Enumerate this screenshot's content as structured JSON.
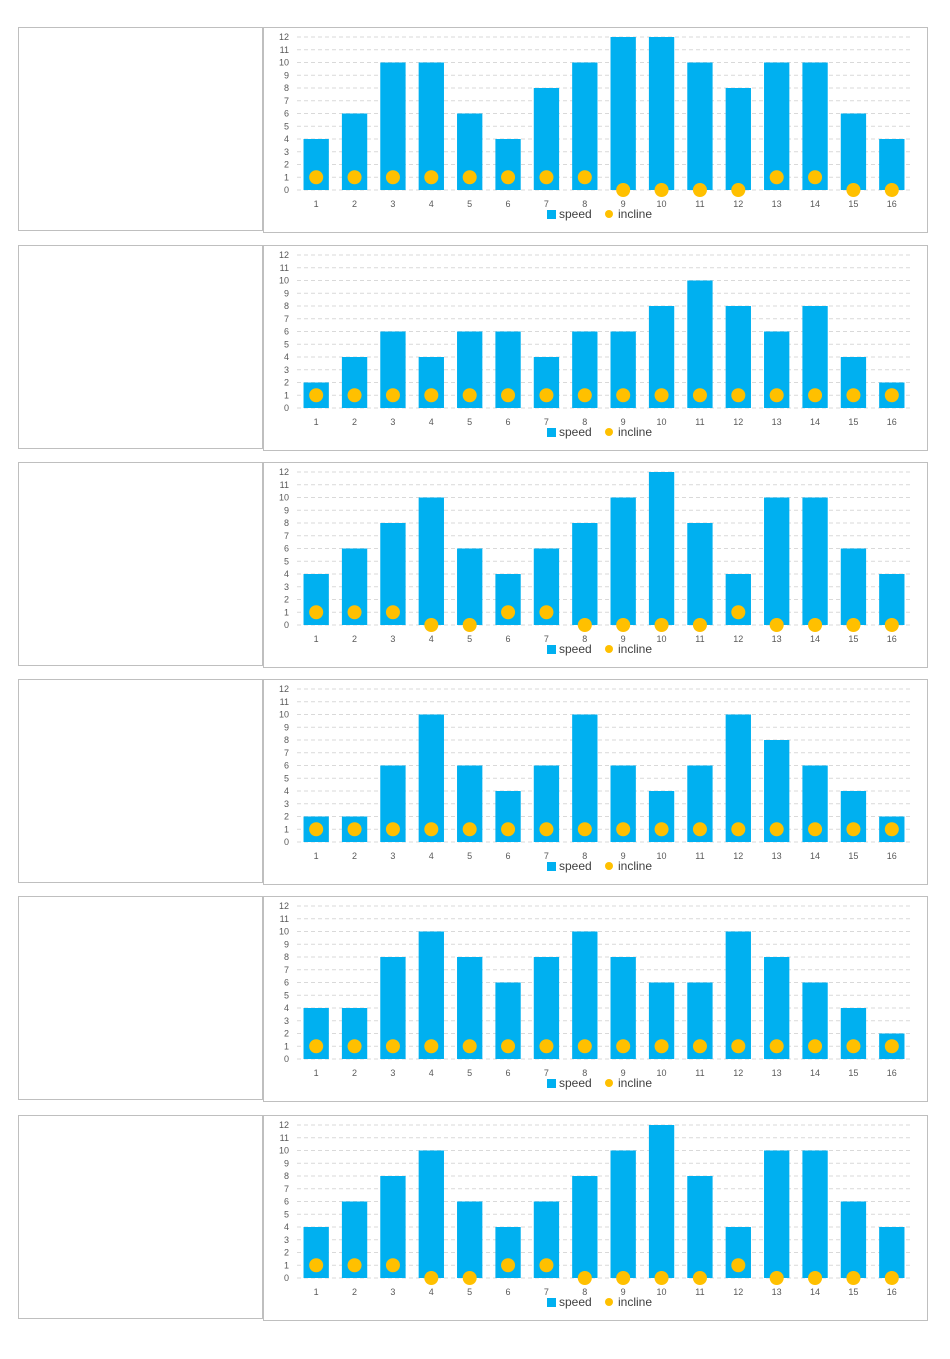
{
  "colors": {
    "speed": "#00B0F0",
    "incline": "#FFC000",
    "grid": "#D9D9D9",
    "axis_text": "#595959"
  },
  "chart_data": [
    {
      "type": "bar",
      "categories": [
        "1",
        "2",
        "3",
        "4",
        "5",
        "6",
        "7",
        "8",
        "9",
        "10",
        "11",
        "12",
        "13",
        "14",
        "15",
        "16"
      ],
      "series": [
        {
          "name": "speed",
          "kind": "bar",
          "values": [
            4,
            6,
            10,
            10,
            6,
            4,
            8,
            10,
            12,
            12,
            10,
            8,
            10,
            10,
            6,
            4
          ]
        },
        {
          "name": "incline",
          "kind": "marker",
          "values": [
            1,
            1,
            1,
            1,
            1,
            1,
            1,
            1,
            0,
            0,
            0,
            0,
            1,
            1,
            0,
            0
          ]
        }
      ],
      "ylim": [
        0,
        12
      ],
      "yticks": [
        "0",
        "1",
        "2",
        "3",
        "4",
        "5",
        "6",
        "7",
        "8",
        "9",
        "10",
        "11",
        "12"
      ],
      "grid": true,
      "legend": "bottom"
    },
    {
      "type": "bar",
      "categories": [
        "1",
        "2",
        "3",
        "4",
        "5",
        "6",
        "7",
        "8",
        "9",
        "10",
        "11",
        "12",
        "13",
        "14",
        "15",
        "16"
      ],
      "series": [
        {
          "name": "speed",
          "kind": "bar",
          "values": [
            2,
            4,
            6,
            4,
            6,
            6,
            4,
            6,
            6,
            8,
            10,
            8,
            6,
            8,
            4,
            2
          ]
        },
        {
          "name": "incline",
          "kind": "marker",
          "values": [
            1,
            1,
            1,
            1,
            1,
            1,
            1,
            1,
            1,
            1,
            1,
            1,
            1,
            1,
            1,
            1
          ]
        }
      ],
      "ylim": [
        0,
        12
      ],
      "yticks": [
        "0",
        "1",
        "2",
        "3",
        "4",
        "5",
        "6",
        "7",
        "8",
        "9",
        "10",
        "11",
        "12"
      ],
      "grid": true,
      "legend": "bottom"
    },
    {
      "type": "bar",
      "categories": [
        "1",
        "2",
        "3",
        "4",
        "5",
        "6",
        "7",
        "8",
        "9",
        "10",
        "11",
        "12",
        "13",
        "14",
        "15",
        "16"
      ],
      "series": [
        {
          "name": "speed",
          "kind": "bar",
          "values": [
            4,
            6,
            8,
            10,
            6,
            4,
            6,
            8,
            10,
            12,
            8,
            4,
            10,
            10,
            6,
            4
          ]
        },
        {
          "name": "incline",
          "kind": "marker",
          "values": [
            1,
            1,
            1,
            0,
            0,
            1,
            1,
            0,
            0,
            0,
            0,
            1,
            0,
            0,
            0,
            0
          ]
        }
      ],
      "ylim": [
        0,
        12
      ],
      "yticks": [
        "0",
        "1",
        "2",
        "3",
        "4",
        "5",
        "6",
        "7",
        "8",
        "9",
        "10",
        "11",
        "12"
      ],
      "grid": true,
      "legend": "bottom"
    },
    {
      "type": "bar",
      "categories": [
        "1",
        "2",
        "3",
        "4",
        "5",
        "6",
        "7",
        "8",
        "9",
        "10",
        "11",
        "12",
        "13",
        "14",
        "15",
        "16"
      ],
      "series": [
        {
          "name": "speed",
          "kind": "bar",
          "values": [
            2,
            2,
            6,
            10,
            6,
            4,
            6,
            10,
            6,
            4,
            6,
            10,
            8,
            6,
            4,
            2
          ]
        },
        {
          "name": "incline",
          "kind": "marker",
          "values": [
            1,
            1,
            1,
            1,
            1,
            1,
            1,
            1,
            1,
            1,
            1,
            1,
            1,
            1,
            1,
            1
          ]
        }
      ],
      "ylim": [
        0,
        12
      ],
      "yticks": [
        "0",
        "1",
        "2",
        "3",
        "4",
        "5",
        "6",
        "7",
        "8",
        "9",
        "10",
        "11",
        "12"
      ],
      "grid": true,
      "legend": "bottom"
    },
    {
      "type": "bar",
      "categories": [
        "1",
        "2",
        "3",
        "4",
        "5",
        "6",
        "7",
        "8",
        "9",
        "10",
        "11",
        "12",
        "13",
        "14",
        "15",
        "16"
      ],
      "series": [
        {
          "name": "speed",
          "kind": "bar",
          "values": [
            4,
            4,
            8,
            10,
            8,
            6,
            8,
            10,
            8,
            6,
            6,
            10,
            8,
            6,
            4,
            2
          ]
        },
        {
          "name": "incline",
          "kind": "marker",
          "values": [
            1,
            1,
            1,
            1,
            1,
            1,
            1,
            1,
            1,
            1,
            1,
            1,
            1,
            1,
            1,
            1
          ]
        }
      ],
      "ylim": [
        0,
        12
      ],
      "yticks": [
        "0",
        "1",
        "2",
        "3",
        "4",
        "5",
        "6",
        "7",
        "8",
        "9",
        "10",
        "11",
        "12"
      ],
      "grid": true,
      "legend": "bottom"
    },
    {
      "type": "bar",
      "categories": [
        "1",
        "2",
        "3",
        "4",
        "5",
        "6",
        "7",
        "8",
        "9",
        "10",
        "11",
        "12",
        "13",
        "14",
        "15",
        "16"
      ],
      "series": [
        {
          "name": "speed",
          "kind": "bar",
          "values": [
            4,
            6,
            8,
            10,
            6,
            4,
            6,
            8,
            10,
            12,
            8,
            4,
            10,
            10,
            6,
            4
          ]
        },
        {
          "name": "incline",
          "kind": "marker",
          "values": [
            1,
            1,
            1,
            0,
            0,
            1,
            1,
            0,
            0,
            0,
            0,
            1,
            0,
            0,
            0,
            0
          ]
        }
      ],
      "ylim": [
        0,
        12
      ],
      "yticks": [
        "0",
        "1",
        "2",
        "3",
        "4",
        "5",
        "6",
        "7",
        "8",
        "9",
        "10",
        "11",
        "12"
      ],
      "grid": true,
      "legend": "bottom"
    }
  ]
}
